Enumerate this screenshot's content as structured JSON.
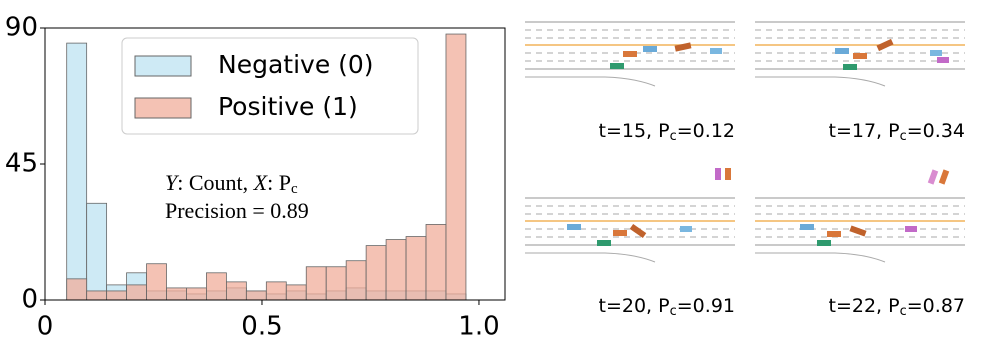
{
  "chart_data": {
    "type": "histogram",
    "bins": [
      0.05,
      0.096,
      0.142,
      0.188,
      0.234,
      0.28,
      0.326,
      0.372,
      0.418,
      0.464,
      0.51,
      0.556,
      0.602,
      0.648,
      0.694,
      0.74,
      0.786,
      0.832,
      0.878,
      0.924,
      0.97
    ],
    "series": [
      {
        "name": "Negative (0)",
        "color": "#bde3f2",
        "values": [
          85,
          32,
          5,
          9,
          3,
          3,
          2,
          3,
          4,
          3,
          2,
          3,
          2,
          3,
          4,
          3,
          3,
          3,
          3,
          2
        ]
      },
      {
        "name": "Positive (1)",
        "color": "#f0ad9b",
        "values": [
          7,
          3,
          3,
          5,
          12,
          4,
          4,
          9,
          6,
          3,
          6,
          5,
          11,
          11,
          13,
          18,
          20,
          21,
          25,
          88
        ]
      }
    ],
    "xlim": [
      0,
      1.06
    ],
    "ylim": [
      0,
      90
    ],
    "xticks": [
      0,
      0.5,
      {
        "value": 1,
        "label": "1.0"
      }
    ],
    "yticks": [
      0,
      45,
      90
    ],
    "annotation": {
      "line1": [
        "Y",
        ": Count, ",
        "X",
        ": P",
        "c"
      ],
      "line2": "Precision = 0.89"
    }
  },
  "panels": [
    {
      "label": "t=15, P",
      "sub": "c",
      "value": "=0.12"
    },
    {
      "label": "t=17, P",
      "sub": "c",
      "value": "=0.34"
    },
    {
      "label": "t=20, P",
      "sub": "c",
      "value": "=0.91"
    },
    {
      "label": "t=22, P",
      "sub": "c",
      "value": "=0.87"
    }
  ]
}
